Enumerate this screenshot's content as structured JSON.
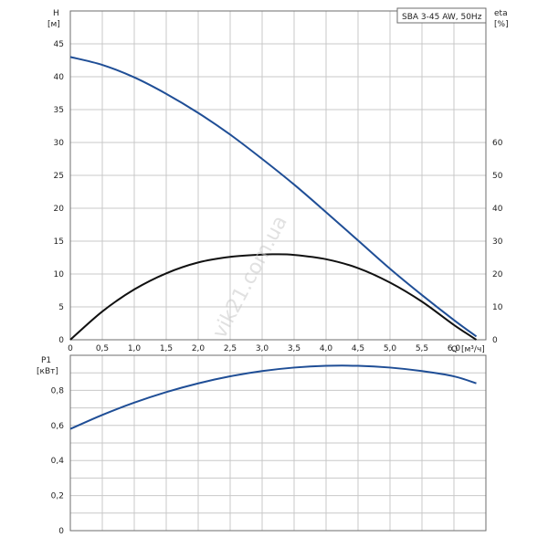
{
  "chart_data": [
    {
      "type": "line",
      "label": "SBA 3-45 AW, 50Hz",
      "xlabel": "Q",
      "xunit": "[м³/ч]",
      "ylabel": "H",
      "yunit": "[м]",
      "y2label": "eta",
      "y2unit": "[%]",
      "xlim": [
        0,
        6.5
      ],
      "ylim": [
        0,
        50
      ],
      "y2lim": [
        0,
        100
      ],
      "xticks": [
        "0",
        "0,5",
        "1,0",
        "1,5",
        "2,0",
        "2,5",
        "3,0",
        "3,5",
        "4,0",
        "4,5",
        "5,0",
        "5,5",
        "6,0"
      ],
      "yticks": [
        "0",
        "5",
        "10",
        "15",
        "20",
        "25",
        "30",
        "35",
        "40",
        "45"
      ],
      "y2ticks": [
        "0",
        "10",
        "20",
        "30",
        "40",
        "50",
        "60"
      ],
      "grid": true,
      "series": [
        {
          "axis": "left",
          "color": "#1f4e96",
          "x": [
            0,
            0.5,
            1.0,
            1.5,
            2.0,
            2.5,
            3.0,
            3.5,
            4.0,
            4.5,
            5.0,
            5.5,
            6.0,
            6.35
          ],
          "y": [
            43,
            41.8,
            39.9,
            37.4,
            34.5,
            31.2,
            27.5,
            23.6,
            19.4,
            15.1,
            10.8,
            6.8,
            3.0,
            0.5
          ]
        },
        {
          "axis": "right",
          "color": "#111111",
          "x": [
            0,
            0.5,
            1.0,
            1.5,
            2.0,
            2.5,
            3.0,
            3.2,
            3.5,
            4.0,
            4.5,
            5.0,
            5.5,
            6.0,
            6.35
          ],
          "y": [
            0,
            8.6,
            15.3,
            20.2,
            23.5,
            25.2,
            25.9,
            26.0,
            25.8,
            24.5,
            21.8,
            17.4,
            11.6,
            4.5,
            0
          ]
        }
      ]
    },
    {
      "type": "line",
      "ylabel": "P1",
      "yunit": "[кВт]",
      "xlim": [
        0,
        6.5
      ],
      "ylim": [
        0,
        1.0
      ],
      "yticks": [
        "0",
        "0,2",
        "0,4",
        "0,6",
        "0,8"
      ],
      "grid": true,
      "series": [
        {
          "color": "#1f4e96",
          "x": [
            0,
            0.5,
            1.0,
            1.5,
            2.0,
            2.5,
            3.0,
            3.5,
            4.0,
            4.5,
            5.0,
            5.5,
            6.0,
            6.35
          ],
          "y": [
            0.58,
            0.66,
            0.73,
            0.79,
            0.84,
            0.88,
            0.91,
            0.93,
            0.94,
            0.94,
            0.93,
            0.91,
            0.88,
            0.84
          ]
        }
      ]
    }
  ],
  "watermark": "vik21.com.ua"
}
